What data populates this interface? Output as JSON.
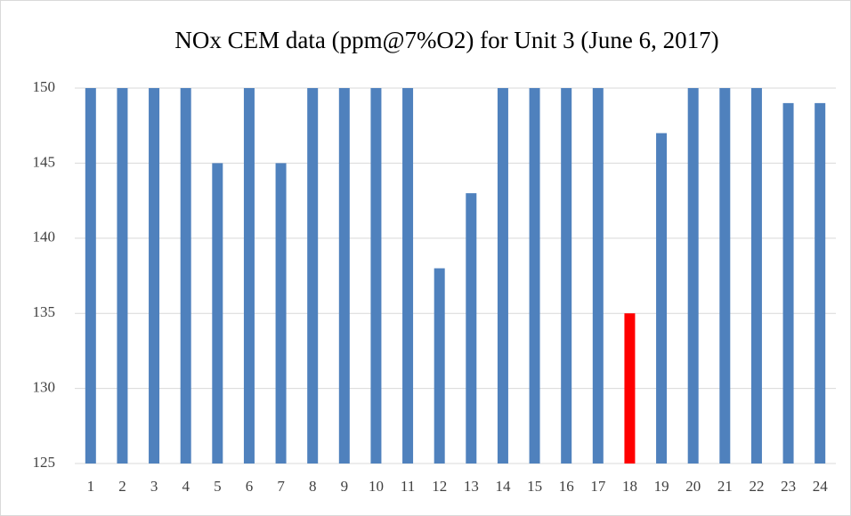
{
  "chart_data": {
    "type": "bar",
    "title": "NOx CEM data (ppm@7%O2) for Unit 3 (June 6, 2017)",
    "categories": [
      "1",
      "2",
      "3",
      "4",
      "5",
      "6",
      "7",
      "8",
      "9",
      "10",
      "11",
      "12",
      "13",
      "14",
      "15",
      "16",
      "17",
      "18",
      "19",
      "20",
      "21",
      "22",
      "23",
      "24"
    ],
    "values": [
      150,
      150,
      150,
      150,
      145,
      150,
      145,
      150,
      150,
      150,
      150,
      138,
      143,
      150,
      150,
      150,
      150,
      135,
      147,
      150,
      150,
      150,
      149,
      149
    ],
    "colors": [
      "#4f81bd",
      "#4f81bd",
      "#4f81bd",
      "#4f81bd",
      "#4f81bd",
      "#4f81bd",
      "#4f81bd",
      "#4f81bd",
      "#4f81bd",
      "#4f81bd",
      "#4f81bd",
      "#4f81bd",
      "#4f81bd",
      "#4f81bd",
      "#4f81bd",
      "#4f81bd",
      "#4f81bd",
      "#ff0000",
      "#4f81bd",
      "#4f81bd",
      "#4f81bd",
      "#4f81bd",
      "#4f81bd",
      "#4f81bd"
    ],
    "ylim": [
      125,
      150
    ],
    "yticks": [
      125,
      130,
      135,
      140,
      145,
      150
    ],
    "grid": true
  }
}
